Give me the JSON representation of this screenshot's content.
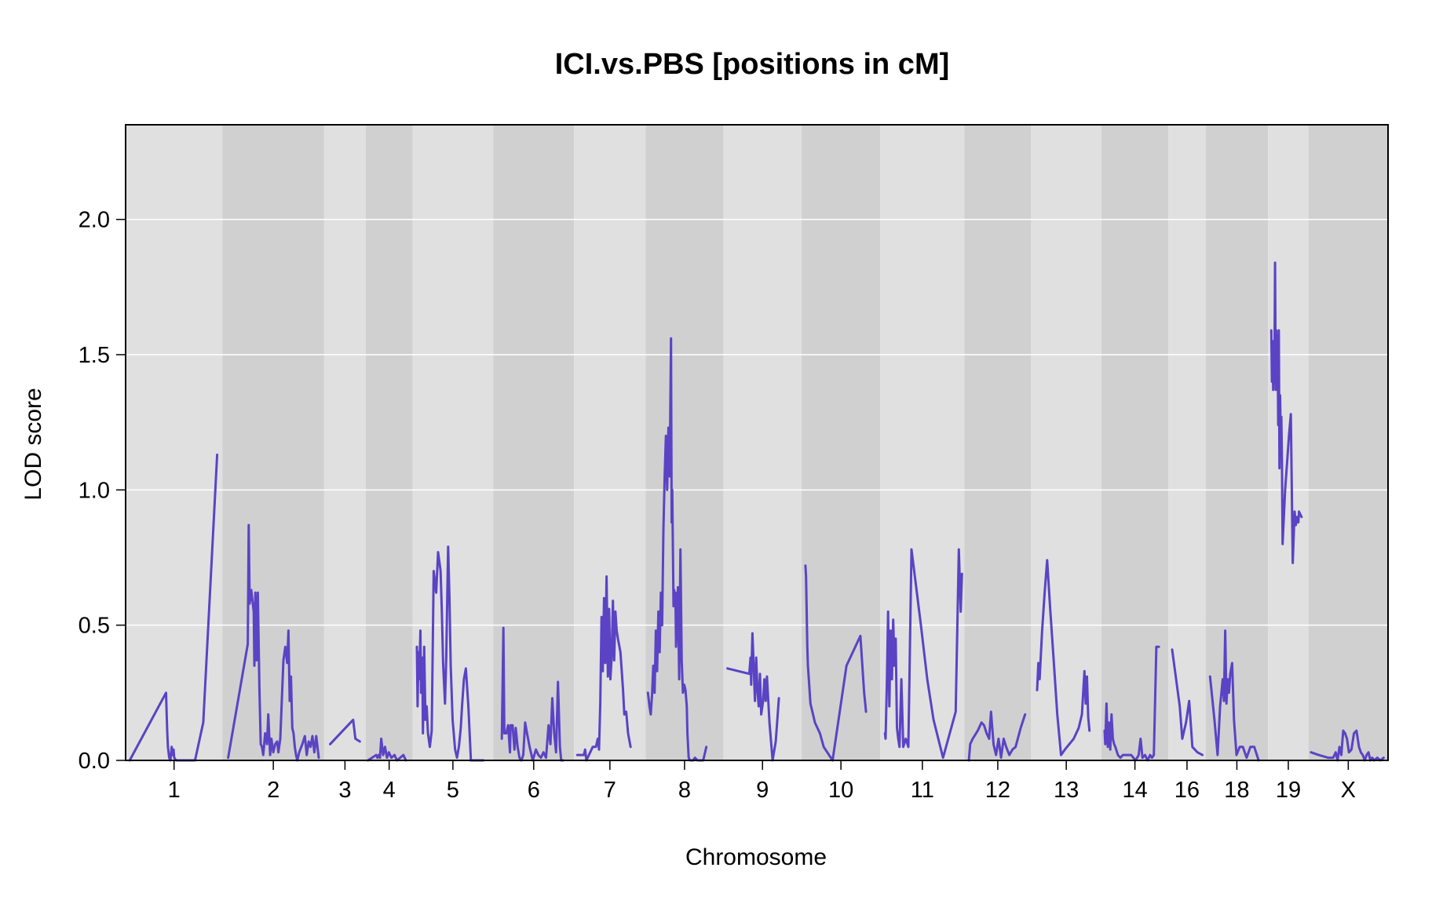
{
  "chart_data": {
    "type": "line",
    "title": "ICI.vs.PBS [positions in cM]",
    "xlabel": "Chromosome",
    "ylabel": "LOD score",
    "ylim": [
      0,
      2.35
    ],
    "yticks": [
      "0.0",
      "0.5",
      "1.0",
      "1.5",
      "2.0"
    ],
    "ytick_values": [
      0,
      0.5,
      1.0,
      1.5,
      2.0
    ],
    "grid": true,
    "legend": "none",
    "colors": {
      "line": "#5a43c4",
      "band_light": "#e0e0e0",
      "band_dark": "#d0d0d0",
      "grid": "#ffffff",
      "frame": "#000000"
    },
    "chromosomes": [
      {
        "name": "1",
        "range": [
          0,
          0.1535
        ]
      },
      {
        "name": "2",
        "range": [
          0.1535,
          0.3145
        ]
      },
      {
        "name": "3",
        "range": [
          0.3145,
          0.3805
        ]
      },
      {
        "name": "4",
        "range": [
          0.3805,
          0.4545
        ]
      },
      {
        "name": "5",
        "range": [
          0.4545,
          0.5825
        ]
      },
      {
        "name": "6",
        "range": [
          0.5825,
          0.7105
        ]
      },
      {
        "name": "7",
        "range": [
          0.7105,
          0.824
        ]
      },
      {
        "name": "8",
        "range": [
          0.824,
          0.947
        ]
      },
      {
        "name": "9",
        "range": [
          0.947,
          1.071
        ]
      },
      {
        "name": "10",
        "range": [
          1.071,
          1.1955
        ]
      },
      {
        "name": "11",
        "range": [
          1.1955,
          1.329
        ]
      },
      {
        "name": "12",
        "range": [
          1.329,
          1.4345
        ]
      },
      {
        "name": "13",
        "range": [
          1.4345,
          1.546
        ]
      },
      {
        "name": "14",
        "range": [
          1.546,
          1.652
        ]
      },
      {
        "name": "16",
        "range": [
          1.652,
          1.711
        ]
      },
      {
        "name": "18",
        "range": [
          1.711,
          1.81
        ]
      },
      {
        "name": "19",
        "range": [
          1.81,
          1.874
        ]
      },
      {
        "name": "X",
        "range": [
          1.874,
          2.0
        ]
      }
    ],
    "series": [
      {
        "chr": "1",
        "x": [
          0.0065,
          0.064,
          0.065,
          0.066,
          0.067,
          0.069,
          0.071,
          0.073,
          0.075,
          0.076,
          0.077,
          0.08,
          0.11,
          0.123,
          0.145
        ],
        "y": [
          0.0,
          0.25,
          0.17,
          0.1,
          0.05,
          0.01,
          0.0,
          0.05,
          0.02,
          0.04,
          0.01,
          0.0,
          0.0,
          0.14,
          1.13
        ]
      },
      {
        "chr": "2",
        "x": [
          0.1625,
          0.1935,
          0.195,
          0.1965,
          0.199,
          0.203,
          0.204,
          0.2055,
          0.2075,
          0.2095,
          0.212,
          0.214,
          0.216,
          0.218,
          0.221,
          0.224,
          0.226,
          0.229,
          0.231,
          0.234,
          0.237,
          0.24,
          0.242,
          0.245,
          0.25,
          0.253,
          0.256,
          0.258,
          0.26,
          0.262,
          0.264,
          0.266,
          0.268,
          0.27,
          0.272,
          0.275,
          0.28,
          0.284,
          0.287,
          0.29,
          0.293,
          0.296,
          0.299,
          0.302,
          0.306
        ],
        "y": [
          0.01,
          0.43,
          0.87,
          0.58,
          0.63,
          0.55,
          0.35,
          0.62,
          0.37,
          0.62,
          0.27,
          0.06,
          0.05,
          0.02,
          0.1,
          0.06,
          0.17,
          0.02,
          0.08,
          0.03,
          0.06,
          0.07,
          0.03,
          0.08,
          0.37,
          0.42,
          0.36,
          0.48,
          0.22,
          0.31,
          0.12,
          0.1,
          0.05,
          0.02,
          0.0,
          0.03,
          0.06,
          0.09,
          0.02,
          0.07,
          0.05,
          0.09,
          0.03,
          0.09,
          0.01
        ]
      },
      {
        "chr": "3",
        "x": [
          0.324,
          0.3605,
          0.364,
          0.371
        ],
        "y": [
          0.06,
          0.15,
          0.08,
          0.07
        ]
      },
      {
        "chr": "4",
        "x": [
          0.384,
          0.397,
          0.399,
          0.401,
          0.403,
          0.405,
          0.408,
          0.411,
          0.414,
          0.417,
          0.421,
          0.426,
          0.43,
          0.435,
          0.44,
          0.444
        ],
        "y": [
          0.0,
          0.02,
          0.01,
          0.02,
          0.01,
          0.08,
          0.02,
          0.05,
          0.01,
          0.03,
          0.01,
          0.02,
          0.0,
          0.01,
          0.02,
          0.0
        ]
      },
      {
        "chr": "5",
        "x": [
          0.4615,
          0.4625,
          0.464,
          0.465,
          0.467,
          0.468,
          0.47,
          0.471,
          0.473,
          0.475,
          0.477,
          0.479,
          0.482,
          0.485,
          0.488,
          0.492,
          0.495,
          0.499,
          0.501,
          0.503,
          0.506,
          0.508,
          0.511,
          0.513,
          0.515,
          0.518,
          0.522,
          0.525,
          0.528,
          0.531,
          0.533,
          0.536,
          0.539,
          0.543,
          0.547,
          0.55,
          0.554,
          0.558,
          0.562,
          0.567
        ],
        "y": [
          0.42,
          0.2,
          0.4,
          0.3,
          0.48,
          0.25,
          0.38,
          0.1,
          0.42,
          0.15,
          0.2,
          0.1,
          0.05,
          0.11,
          0.7,
          0.62,
          0.77,
          0.7,
          0.55,
          0.36,
          0.21,
          0.38,
          0.79,
          0.6,
          0.35,
          0.15,
          0.04,
          0.01,
          0.05,
          0.12,
          0.2,
          0.3,
          0.34,
          0.2,
          0.0,
          0.0,
          0.0,
          0.0,
          0.0,
          0.0
        ]
      },
      {
        "chr": "6",
        "x": [
          0.596,
          0.5985,
          0.6,
          0.603,
          0.606,
          0.609,
          0.61,
          0.613,
          0.616,
          0.618,
          0.621,
          0.624,
          0.627,
          0.63,
          0.633,
          0.636,
          0.64,
          0.645,
          0.65,
          0.654,
          0.658,
          0.662,
          0.666,
          0.67,
          0.673,
          0.676,
          0.679,
          0.682,
          0.685,
          0.688,
          0.69,
          0.693
        ],
        "y": [
          0.08,
          0.49,
          0.1,
          0.1,
          0.13,
          0.03,
          0.13,
          0.13,
          0.04,
          0.12,
          0.05,
          0.01,
          0.0,
          0.02,
          0.14,
          0.1,
          0.05,
          0.0,
          0.04,
          0.02,
          0.01,
          0.03,
          0.01,
          0.13,
          0.06,
          0.23,
          0.1,
          0.03,
          0.29,
          0.05,
          0.0,
          0.0
        ]
      },
      {
        "chr": "7",
        "x": [
          0.7155,
          0.726,
          0.728,
          0.73,
          0.74,
          0.745,
          0.748,
          0.75,
          0.752,
          0.754,
          0.756,
          0.758,
          0.76,
          0.762,
          0.764,
          0.766,
          0.768,
          0.77,
          0.772,
          0.774,
          0.776,
          0.778,
          0.78,
          0.784,
          0.788,
          0.79,
          0.793,
          0.796,
          0.8
        ],
        "y": [
          0.02,
          0.02,
          0.04,
          0.0,
          0.05,
          0.05,
          0.08,
          0.04,
          0.21,
          0.53,
          0.33,
          0.6,
          0.36,
          0.68,
          0.31,
          0.56,
          0.3,
          0.38,
          0.59,
          0.37,
          0.55,
          0.48,
          0.45,
          0.4,
          0.26,
          0.17,
          0.18,
          0.1,
          0.05
        ]
      },
      {
        "chr": "8",
        "x": [
          0.8275,
          0.83,
          0.832,
          0.834,
          0.836,
          0.838,
          0.84,
          0.842,
          0.844,
          0.846,
          0.848,
          0.85,
          0.852,
          0.854,
          0.856,
          0.858,
          0.86,
          0.862,
          0.864,
          0.865,
          0.866,
          0.868,
          0.869,
          0.87,
          0.871,
          0.872,
          0.873,
          0.875,
          0.877,
          0.879,
          0.881,
          0.883,
          0.885,
          0.887,
          0.889,
          0.89,
          0.892,
          0.894,
          0.896,
          0.899,
          0.902,
          0.906,
          0.91,
          0.915,
          0.92
        ],
        "y": [
          0.25,
          0.2,
          0.17,
          0.24,
          0.35,
          0.25,
          0.48,
          0.33,
          0.55,
          0.4,
          0.62,
          0.5,
          0.85,
          1.05,
          1.2,
          1.0,
          1.23,
          1.05,
          1.56,
          0.88,
          1.0,
          0.57,
          0.63,
          0.6,
          0.62,
          0.42,
          0.48,
          0.64,
          0.3,
          0.78,
          0.37,
          0.25,
          0.28,
          0.26,
          0.2,
          0.1,
          0.01,
          0.0,
          0.0,
          0.0,
          0.01,
          0.0,
          0.0,
          0.0,
          0.05
        ]
      },
      {
        "chr": "9",
        "x": [
          0.9535,
          0.988,
          0.99,
          0.991,
          0.993,
          0.995,
          0.997,
          0.999,
          1.001,
          1.003,
          1.005,
          1.007,
          1.01,
          1.012,
          1.014,
          1.016,
          1.02,
          1.025,
          1.03,
          1.035
        ],
        "y": [
          0.34,
          0.32,
          0.38,
          0.28,
          0.47,
          0.35,
          0.22,
          0.38,
          0.26,
          0.2,
          0.32,
          0.17,
          0.22,
          0.3,
          0.22,
          0.31,
          0.14,
          0.0,
          0.07,
          0.23
        ]
      },
      {
        "chr": "10",
        "x": [
          1.077,
          1.078,
          1.08,
          1.081,
          1.083,
          1.085,
          1.088,
          1.092,
          1.096,
          1.1,
          1.106,
          1.12,
          1.142,
          1.164,
          1.17,
          1.173
        ],
        "y": [
          0.72,
          0.68,
          0.42,
          0.35,
          0.28,
          0.21,
          0.18,
          0.14,
          0.12,
          0.1,
          0.05,
          0.0,
          0.35,
          0.46,
          0.25,
          0.18
        ]
      },
      {
        "chr": "11",
        "x": [
          1.203,
          1.204,
          1.206,
          1.208,
          1.21,
          1.212,
          1.214,
          1.216,
          1.218,
          1.22,
          1.222,
          1.224,
          1.226,
          1.229,
          1.232,
          1.236,
          1.24,
          1.245,
          1.252,
          1.26,
          1.27,
          1.28,
          1.295,
          1.315,
          1.32,
          1.323,
          1.325
        ],
        "y": [
          0.1,
          0.08,
          0.28,
          0.55,
          0.2,
          0.48,
          0.3,
          0.52,
          0.35,
          0.45,
          0.12,
          0.08,
          0.05,
          0.3,
          0.05,
          0.08,
          0.05,
          0.78,
          0.65,
          0.5,
          0.3,
          0.15,
          0.01,
          0.18,
          0.78,
          0.55,
          0.69
        ]
      },
      {
        "chr": "12",
        "x": [
          1.336,
          1.337,
          1.338,
          1.342,
          1.35,
          1.356,
          1.36,
          1.364,
          1.368,
          1.371,
          1.375,
          1.379,
          1.383,
          1.387,
          1.391,
          1.395,
          1.4,
          1.405,
          1.41,
          1.418,
          1.425
        ],
        "y": [
          0.0,
          0.03,
          0.06,
          0.08,
          0.11,
          0.14,
          0.13,
          0.1,
          0.08,
          0.18,
          0.06,
          0.02,
          0.08,
          0.01,
          0.08,
          0.05,
          0.02,
          0.04,
          0.05,
          0.12,
          0.17
        ]
      },
      {
        "chr": "13",
        "x": [
          1.444,
          1.446,
          1.448,
          1.452,
          1.456,
          1.46,
          1.465,
          1.47,
          1.476,
          1.482,
          1.488,
          1.495,
          1.502,
          1.51,
          1.515,
          1.519,
          1.521,
          1.523,
          1.525,
          1.527
        ],
        "y": [
          0.26,
          0.36,
          0.3,
          0.48,
          0.62,
          0.74,
          0.55,
          0.38,
          0.17,
          0.02,
          0.04,
          0.06,
          0.08,
          0.12,
          0.17,
          0.33,
          0.21,
          0.31,
          0.16,
          0.11
        ]
      },
      {
        "chr": "14",
        "x": [
          1.551,
          1.552,
          1.554,
          1.556,
          1.558,
          1.56,
          1.562,
          1.564,
          1.566,
          1.568,
          1.572,
          1.576,
          1.58,
          1.586,
          1.593,
          1.6,
          1.605,
          1.608,
          1.611,
          1.615,
          1.619,
          1.623,
          1.626,
          1.629,
          1.633,
          1.637
        ],
        "y": [
          0.11,
          0.06,
          0.21,
          0.05,
          0.14,
          0.04,
          0.17,
          0.08,
          0.06,
          0.05,
          0.02,
          0.01,
          0.02,
          0.02,
          0.02,
          0.0,
          0.02,
          0.08,
          0.01,
          0.02,
          0.0,
          0.02,
          0.01,
          0.02,
          0.42,
          0.42
        ]
      },
      {
        "chr": "16",
        "x": [
          1.658,
          1.67,
          1.674,
          1.68,
          1.685,
          1.69,
          1.698,
          1.706
        ],
        "y": [
          0.41,
          0.2,
          0.08,
          0.14,
          0.22,
          0.05,
          0.03,
          0.02
        ]
      },
      {
        "chr": "18",
        "x": [
          1.718,
          1.725,
          1.73,
          1.734,
          1.738,
          1.74,
          1.742,
          1.744,
          1.746,
          1.748,
          1.75,
          1.753,
          1.756,
          1.76,
          1.765,
          1.77,
          1.776,
          1.782,
          1.788,
          1.795
        ],
        "y": [
          0.31,
          0.15,
          0.02,
          0.2,
          0.3,
          0.22,
          0.48,
          0.21,
          0.3,
          0.25,
          0.32,
          0.36,
          0.15,
          0.02,
          0.05,
          0.05,
          0.01,
          0.05,
          0.05,
          0.0
        ]
      },
      {
        "chr": "19",
        "x": [
          1.815,
          1.816,
          1.817,
          1.818,
          1.819,
          1.82,
          1.821,
          1.822,
          1.823,
          1.824,
          1.825,
          1.826,
          1.827,
          1.828,
          1.829,
          1.83,
          1.831,
          1.832,
          1.833,
          1.835,
          1.837,
          1.84,
          1.843,
          1.846,
          1.849,
          1.852,
          1.854,
          1.856,
          1.858,
          1.859,
          1.861,
          1.863
        ],
        "y": [
          1.59,
          1.4,
          1.55,
          1.37,
          1.5,
          1.45,
          1.84,
          1.37,
          1.59,
          1.45,
          1.57,
          1.24,
          1.59,
          1.08,
          1.35,
          1.2,
          1.27,
          1.1,
          0.8,
          0.9,
          1.0,
          1.1,
          1.2,
          1.28,
          0.73,
          0.92,
          0.87,
          0.9,
          0.88,
          0.92,
          0.91,
          0.9
        ]
      },
      {
        "chr": "X",
        "x": [
          1.878,
          1.89,
          1.905,
          1.913,
          1.917,
          1.92,
          1.923,
          1.926,
          1.929,
          1.932,
          1.935,
          1.938,
          1.942,
          1.946,
          1.95,
          1.954,
          1.957,
          1.96,
          1.963,
          1.966,
          1.969,
          1.972,
          1.975,
          1.978,
          1.983,
          1.988,
          1.993
        ],
        "y": [
          0.03,
          0.02,
          0.01,
          0.01,
          0.03,
          0.0,
          0.05,
          0.02,
          0.11,
          0.1,
          0.08,
          0.03,
          0.04,
          0.1,
          0.11,
          0.05,
          0.03,
          0.02,
          0.0,
          0.02,
          0.03,
          0.0,
          0.01,
          0.0,
          0.01,
          0.0,
          0.01
        ]
      }
    ]
  }
}
